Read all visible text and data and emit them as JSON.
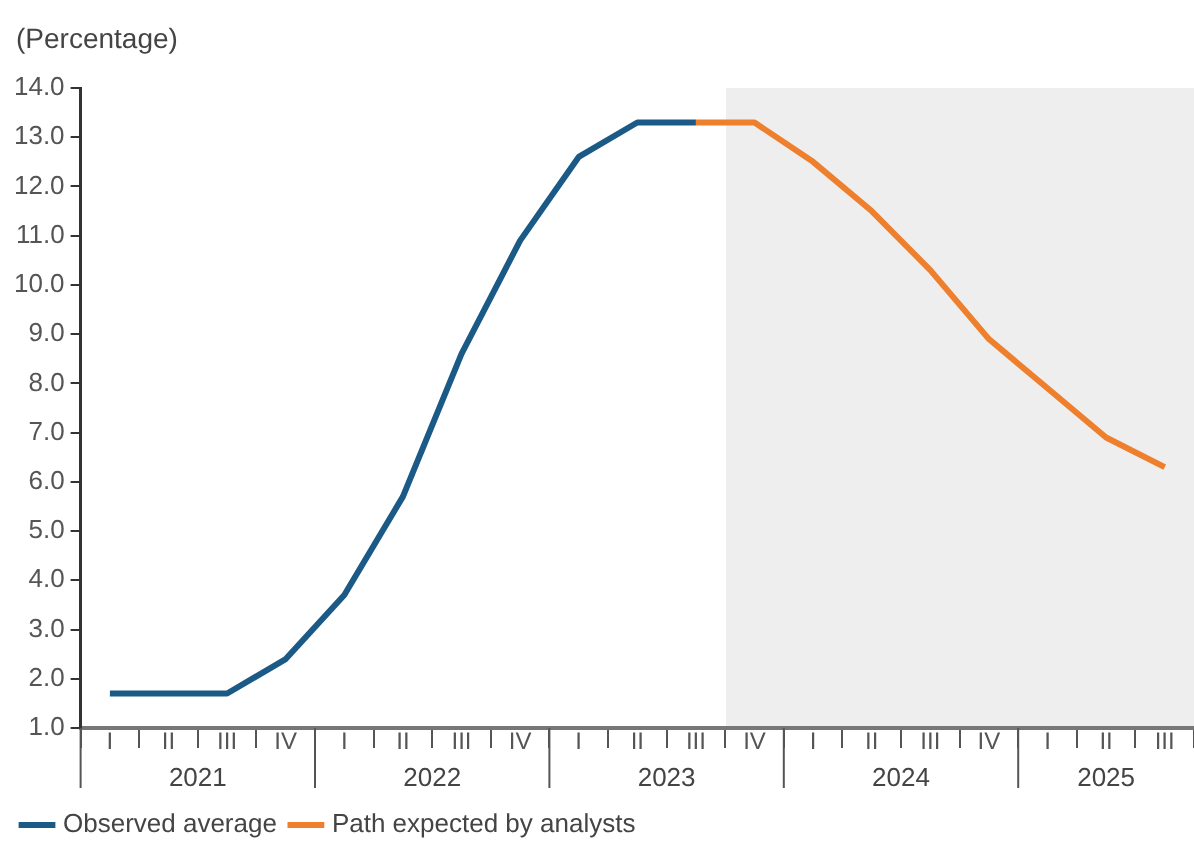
{
  "chart_data": {
    "type": "line",
    "ylabel": "(Percentage)",
    "categories": [
      "I",
      "II",
      "III",
      "IV",
      "I",
      "II",
      "III",
      "IV",
      "I",
      "II",
      "III",
      "IV",
      "I",
      "II",
      "III",
      "IV",
      "I",
      "II",
      "III"
    ],
    "series": [
      {
        "name": "Observed average",
        "color": "#1b5a86",
        "values": [
          1.7,
          1.7,
          1.7,
          2.4,
          3.7,
          5.7,
          8.6,
          10.9,
          12.6,
          13.3,
          13.3,
          null,
          null,
          null,
          null,
          null,
          null,
          null,
          null
        ]
      },
      {
        "name": "Path expected by analysts",
        "color": "#ee7f2d",
        "values": [
          null,
          null,
          null,
          null,
          null,
          null,
          null,
          null,
          null,
          null,
          13.3,
          13.3,
          12.5,
          11.5,
          10.3,
          8.9,
          7.9,
          6.9,
          6.3
        ]
      }
    ],
    "annotations": [
      "2021",
      "2022",
      "2023",
      "2024",
      "2025"
    ],
    "ylim": [
      1,
      14
    ],
    "yticks": [
      {
        "value": 1,
        "label": "1.0"
      },
      {
        "value": 2,
        "label": "2.0"
      },
      {
        "value": 3,
        "label": "3.0"
      },
      {
        "value": 4,
        "label": "4.0"
      },
      {
        "value": 5,
        "label": "5.0"
      },
      {
        "value": 6,
        "label": "6.0"
      },
      {
        "value": 7,
        "label": "7.0"
      },
      {
        "value": 8,
        "label": "8.0"
      },
      {
        "value": 9,
        "label": "9.0"
      },
      {
        "value": 10,
        "label": "10.0"
      },
      {
        "value": 11,
        "label": "11.0"
      },
      {
        "value": 12,
        "label": "12.0"
      },
      {
        "value": 13,
        "label": "13.0"
      },
      {
        "value": 14,
        "label": "14.0"
      }
    ],
    "grid": false,
    "legend": "bottom",
    "marker": "none",
    "line_style": "solid"
  }
}
